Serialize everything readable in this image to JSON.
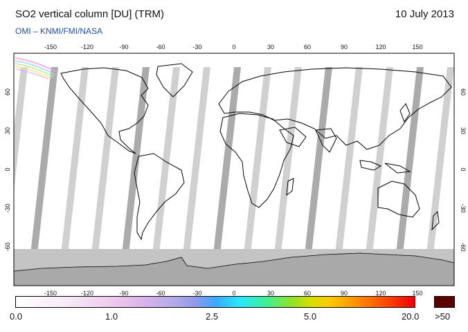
{
  "header": {
    "title": "SO2 vertical column [DU] (TRM)",
    "date": "10 July 2013",
    "credit": "OMI  –  KNMI/FMI/NASA"
  },
  "map": {
    "projection": "equirectangular",
    "lon_range": [
      -180,
      180
    ],
    "lat_range": [
      -90,
      90
    ],
    "lon_ticks": [
      -150,
      -120,
      -90,
      -60,
      -30,
      0,
      30,
      60,
      90,
      120,
      150
    ],
    "lat_ticks": [
      60,
      30,
      0,
      -30,
      -60
    ],
    "orbit_swath_color": "#c8c8c8",
    "orbit_swath_dark_color": "#9c9c9c",
    "polar_mask_color": "#bdbdbd",
    "antarctica_color": "#a8a8a8"
  },
  "colorbar": {
    "labels": [
      "0.0",
      "1.0",
      "2.5",
      "5.0",
      "20.0"
    ],
    "overflow_label": ">50",
    "overflow_color": "#5a0000"
  }
}
